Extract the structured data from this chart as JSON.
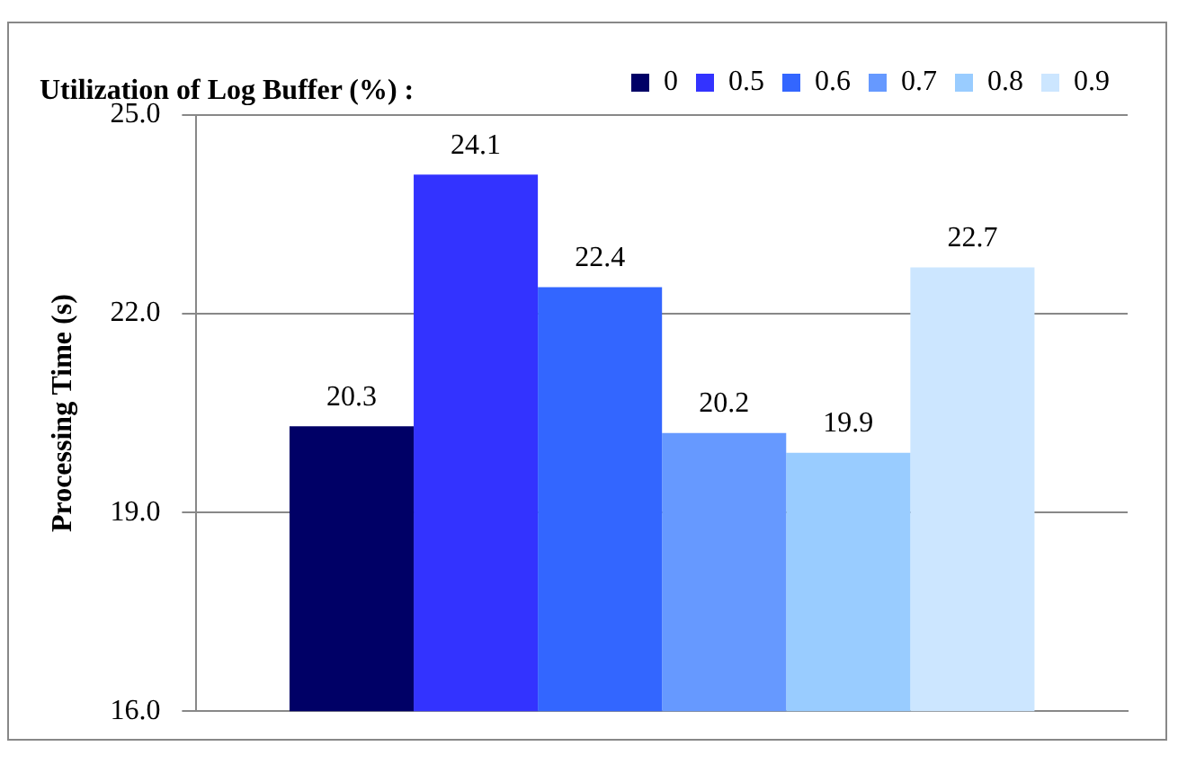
{
  "chart_data": {
    "type": "bar",
    "legend_title": "Utilization of Log Buffer (%) :",
    "ylabel": "Processing Time (s)",
    "categories": [
      null
    ],
    "series": [
      {
        "name": "0",
        "color": "#000066",
        "values": [
          20.3
        ]
      },
      {
        "name": "0.5",
        "color": "#3333ff",
        "values": [
          24.1
        ]
      },
      {
        "name": "0.6",
        "color": "#3366ff",
        "values": [
          22.4
        ]
      },
      {
        "name": "0.7",
        "color": "#6699ff",
        "values": [
          20.2
        ]
      },
      {
        "name": "0.8",
        "color": "#99ccff",
        "values": [
          19.9
        ]
      },
      {
        "name": "0.9",
        "color": "#cce6ff",
        "values": [
          22.7
        ]
      }
    ],
    "ylim": [
      16,
      25
    ],
    "yticks": [
      {
        "value": 16,
        "label": "16.0"
      },
      {
        "value": 19,
        "label": "19.0"
      },
      {
        "value": 22,
        "label": "22.0"
      },
      {
        "value": 25,
        "label": "25.0"
      }
    ],
    "grid": "y",
    "legend": "top right",
    "data_labels": true
  }
}
